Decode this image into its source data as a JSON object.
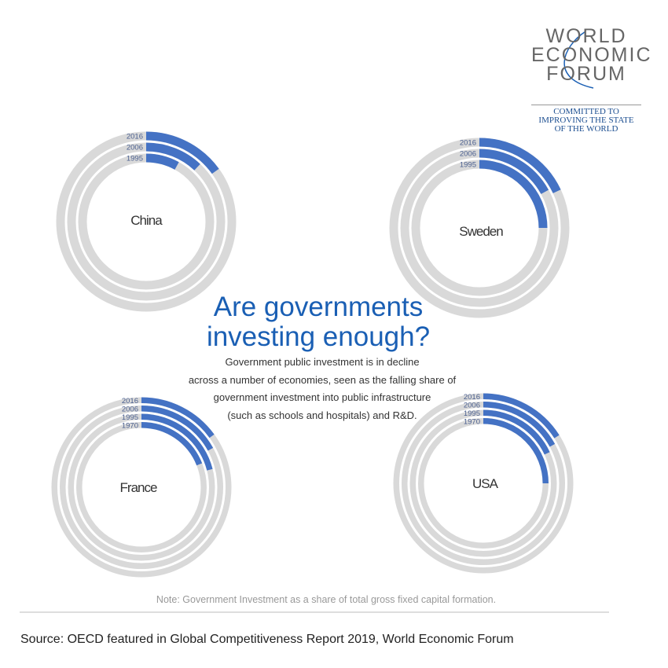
{
  "logo": {
    "line1": "WORLD",
    "line2": "ECONOMIC",
    "line3": "FORUM",
    "tagline": [
      "COMMITTED TO",
      "IMPROVING THE STATE",
      "OF THE WORLD"
    ]
  },
  "header": {
    "title_line1": "Are governments",
    "title_line2": "investing enough?",
    "subtitle": [
      "Government public investment is in decline",
      "across a number of economies, seen as the falling share of",
      "government investment into public infrastructure",
      "(such as schools and hospitals) and R&D."
    ]
  },
  "note": "Note: Government Investment as a share of total gross fixed capital formation.",
  "source": "Source: OECD featured in Global Competitiveness Report 2019, World Economic Forum",
  "colors": {
    "filled": "#4472c4",
    "track": "#d9d9d9",
    "label": "#4a5f8f"
  },
  "chart_data": [
    {
      "type": "radial-bar",
      "country": "China",
      "unit": "% share",
      "series": [
        {
          "name": "2016",
          "value": 15
        },
        {
          "name": "2006",
          "value": 12
        },
        {
          "name": "1995",
          "value": 8
        }
      ]
    },
    {
      "type": "radial-bar",
      "country": "Sweden",
      "unit": "% share",
      "series": [
        {
          "name": "2016",
          "value": 18
        },
        {
          "name": "2006",
          "value": 17
        },
        {
          "name": "1995",
          "value": 25
        }
      ]
    },
    {
      "type": "radial-bar",
      "country": "France",
      "unit": "% share",
      "series": [
        {
          "name": "2016",
          "value": 15
        },
        {
          "name": "2006",
          "value": 17
        },
        {
          "name": "1995",
          "value": 21
        },
        {
          "name": "1970",
          "value": 19
        }
      ]
    },
    {
      "type": "radial-bar",
      "country": "USA",
      "unit": "% share",
      "series": [
        {
          "name": "2016",
          "value": 16
        },
        {
          "name": "2006",
          "value": 17
        },
        {
          "name": "1995",
          "value": 18
        },
        {
          "name": "1970",
          "value": 25
        }
      ]
    }
  ]
}
